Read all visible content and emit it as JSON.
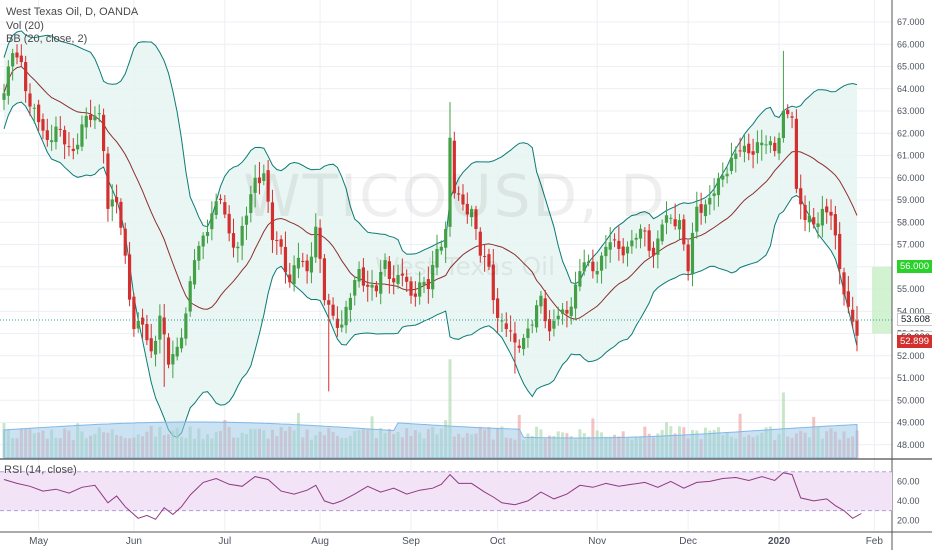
{
  "chart_data": [
    {
      "type": "candlestick",
      "title": "West Texas Oil, D, OANDA",
      "watermark": {
        "symbol": "WTICOUSD, D",
        "description": "West Texas Oil"
      },
      "legend": [
        "Vol (20)",
        "BB (20, close, 2)"
      ],
      "y_ticks": [
        48.0,
        49.0,
        50.0,
        51.0,
        52.0,
        53.0,
        54.0,
        55.0,
        56.0,
        57.0,
        58.0,
        59.0,
        60.0,
        61.0,
        62.0,
        63.0,
        64.0,
        65.0,
        66.0,
        67.0
      ],
      "ylim": [
        47.5,
        67.5
      ],
      "x_ticks": [
        {
          "label": "May",
          "index": 8
        },
        {
          "label": "Jun",
          "index": 30
        },
        {
          "label": "Jul",
          "index": 51
        },
        {
          "label": "Aug",
          "index": 73
        },
        {
          "label": "Sep",
          "index": 94
        },
        {
          "label": "Oct",
          "index": 114
        },
        {
          "label": "Nov",
          "index": 137
        },
        {
          "label": "Dec",
          "index": 158
        },
        {
          "label": "2020",
          "index": 179
        },
        {
          "label": "Feb",
          "index": 201
        }
      ],
      "price_labels": [
        {
          "value": "56.000",
          "color": "#26c126"
        },
        {
          "value": "53.608",
          "color": "#ffffff"
        },
        {
          "value": "52.900",
          "color": "#131722"
        },
        {
          "value": "52.899",
          "color": "#d32f2f"
        }
      ],
      "anchors": [
        {
          "i": 0,
          "close": 63.8
        },
        {
          "i": 2,
          "close": 65.6
        },
        {
          "i": 4,
          "close": 65.2
        },
        {
          "i": 6,
          "close": 63.2
        },
        {
          "i": 8,
          "close": 62.5
        },
        {
          "i": 10,
          "close": 61.7
        },
        {
          "i": 12,
          "close": 62.3
        },
        {
          "i": 14,
          "close": 61.5
        },
        {
          "i": 16,
          "close": 61.2
        },
        {
          "i": 18,
          "close": 62.4
        },
        {
          "i": 20,
          "close": 62.6
        },
        {
          "i": 22,
          "close": 62.9
        },
        {
          "i": 23,
          "close": 61.2
        },
        {
          "i": 24,
          "close": 58.6
        },
        {
          "i": 26,
          "close": 58.9
        },
        {
          "i": 28,
          "close": 56.5
        },
        {
          "i": 30,
          "close": 53.2
        },
        {
          "i": 32,
          "close": 53.4
        },
        {
          "i": 33,
          "close": 52.7
        },
        {
          "i": 34,
          "close": 52.2
        },
        {
          "i": 36,
          "close": 53.8
        },
        {
          "i": 38,
          "close": 51.6
        },
        {
          "i": 40,
          "close": 52.4
        },
        {
          "i": 42,
          "close": 53.9
        },
        {
          "i": 44,
          "close": 56.3
        },
        {
          "i": 46,
          "close": 57.4
        },
        {
          "i": 48,
          "close": 58.4
        },
        {
          "i": 50,
          "close": 59.0
        },
        {
          "i": 52,
          "close": 57.5
        },
        {
          "i": 54,
          "close": 56.9
        },
        {
          "i": 56,
          "close": 58.3
        },
        {
          "i": 58,
          "close": 60.0
        },
        {
          "i": 60,
          "close": 60.2
        },
        {
          "i": 62,
          "close": 57.2
        },
        {
          "i": 64,
          "close": 56.9
        },
        {
          "i": 66,
          "close": 55.3
        },
        {
          "i": 68,
          "close": 56.4
        },
        {
          "i": 70,
          "close": 55.8
        },
        {
          "i": 72,
          "close": 57.8
        },
        {
          "i": 74,
          "close": 54.5
        },
        {
          "i": 76,
          "close": 53.8
        },
        {
          "i": 78,
          "close": 53.4
        },
        {
          "i": 80,
          "close": 54.6
        },
        {
          "i": 82,
          "close": 55.9
        },
        {
          "i": 84,
          "close": 55.1
        },
        {
          "i": 86,
          "close": 54.9
        },
        {
          "i": 88,
          "close": 56.3
        },
        {
          "i": 90,
          "close": 55.3
        },
        {
          "i": 92,
          "close": 55.6
        },
        {
          "i": 94,
          "close": 54.7
        },
        {
          "i": 96,
          "close": 55.3
        },
        {
          "i": 98,
          "close": 55.0
        },
        {
          "i": 100,
          "close": 56.8
        },
        {
          "i": 102,
          "close": 57.7
        },
        {
          "i": 103,
          "close": 61.8
        },
        {
          "i": 104,
          "close": 59.3
        },
        {
          "i": 106,
          "close": 58.8
        },
        {
          "i": 108,
          "close": 58.6
        },
        {
          "i": 110,
          "close": 56.5
        },
        {
          "i": 112,
          "close": 56.0
        },
        {
          "i": 114,
          "close": 53.7
        },
        {
          "i": 116,
          "close": 53.2
        },
        {
          "i": 118,
          "close": 52.6
        },
        {
          "i": 120,
          "close": 52.8
        },
        {
          "i": 122,
          "close": 53.4
        },
        {
          "i": 124,
          "close": 54.7
        },
        {
          "i": 126,
          "close": 53.1
        },
        {
          "i": 128,
          "close": 53.8
        },
        {
          "i": 130,
          "close": 53.9
        },
        {
          "i": 132,
          "close": 55.2
        },
        {
          "i": 134,
          "close": 56.2
        },
        {
          "i": 136,
          "close": 55.8
        },
        {
          "i": 138,
          "close": 56.5
        },
        {
          "i": 140,
          "close": 57.1
        },
        {
          "i": 142,
          "close": 56.8
        },
        {
          "i": 144,
          "close": 56.9
        },
        {
          "i": 146,
          "close": 57.3
        },
        {
          "i": 148,
          "close": 57.6
        },
        {
          "i": 150,
          "close": 56.5
        },
        {
          "i": 152,
          "close": 57.9
        },
        {
          "i": 154,
          "close": 58.2
        },
        {
          "i": 156,
          "close": 58.1
        },
        {
          "i": 158,
          "close": 55.8
        },
        {
          "i": 160,
          "close": 58.7
        },
        {
          "i": 162,
          "close": 58.8
        },
        {
          "i": 164,
          "close": 59.3
        },
        {
          "i": 166,
          "close": 60.1
        },
        {
          "i": 168,
          "close": 60.9
        },
        {
          "i": 170,
          "close": 61.2
        },
        {
          "i": 172,
          "close": 61.1
        },
        {
          "i": 174,
          "close": 61.6
        },
        {
          "i": 176,
          "close": 61.5
        },
        {
          "i": 178,
          "close": 61.2
        },
        {
          "i": 180,
          "close": 63.0
        },
        {
          "i": 182,
          "close": 62.7
        },
        {
          "i": 183,
          "close": 59.5
        },
        {
          "i": 185,
          "close": 58.1
        },
        {
          "i": 187,
          "close": 57.9
        },
        {
          "i": 189,
          "close": 58.6
        },
        {
          "i": 191,
          "close": 58.3
        },
        {
          "i": 193,
          "close": 55.9
        },
        {
          "i": 195,
          "close": 54.2
        },
        {
          "i": 197,
          "close": 52.9
        }
      ],
      "rsi": {
        "label": "RSI (14, close)",
        "y_ticks": [
          20.0,
          40.0,
          60.0
        ],
        "ylim": [
          10,
          80
        ],
        "bands": [
          30,
          70
        ],
        "anchors": [
          {
            "i": 0,
            "v": 62
          },
          {
            "i": 3,
            "v": 58
          },
          {
            "i": 6,
            "v": 55
          },
          {
            "i": 9,
            "v": 50
          },
          {
            "i": 12,
            "v": 52
          },
          {
            "i": 15,
            "v": 48
          },
          {
            "i": 18,
            "v": 54
          },
          {
            "i": 21,
            "v": 56
          },
          {
            "i": 24,
            "v": 38
          },
          {
            "i": 26,
            "v": 45
          },
          {
            "i": 28,
            "v": 34
          },
          {
            "i": 31,
            "v": 22
          },
          {
            "i": 33,
            "v": 25
          },
          {
            "i": 35,
            "v": 21
          },
          {
            "i": 37,
            "v": 33
          },
          {
            "i": 39,
            "v": 26
          },
          {
            "i": 41,
            "v": 34
          },
          {
            "i": 43,
            "v": 46
          },
          {
            "i": 46,
            "v": 59
          },
          {
            "i": 49,
            "v": 63
          },
          {
            "i": 52,
            "v": 57
          },
          {
            "i": 55,
            "v": 55
          },
          {
            "i": 58,
            "v": 65
          },
          {
            "i": 61,
            "v": 62
          },
          {
            "i": 64,
            "v": 50
          },
          {
            "i": 67,
            "v": 47
          },
          {
            "i": 70,
            "v": 51
          },
          {
            "i": 72,
            "v": 56
          },
          {
            "i": 74,
            "v": 40
          },
          {
            "i": 76,
            "v": 37
          },
          {
            "i": 78,
            "v": 40
          },
          {
            "i": 81,
            "v": 47
          },
          {
            "i": 84,
            "v": 55
          },
          {
            "i": 87,
            "v": 49
          },
          {
            "i": 90,
            "v": 53
          },
          {
            "i": 93,
            "v": 47
          },
          {
            "i": 96,
            "v": 51
          },
          {
            "i": 99,
            "v": 53
          },
          {
            "i": 101,
            "v": 57
          },
          {
            "i": 103,
            "v": 67
          },
          {
            "i": 105,
            "v": 58
          },
          {
            "i": 108,
            "v": 58
          },
          {
            "i": 111,
            "v": 49
          },
          {
            "i": 113,
            "v": 44
          },
          {
            "i": 115,
            "v": 38
          },
          {
            "i": 118,
            "v": 36
          },
          {
            "i": 121,
            "v": 40
          },
          {
            "i": 124,
            "v": 49
          },
          {
            "i": 127,
            "v": 42
          },
          {
            "i": 130,
            "v": 47
          },
          {
            "i": 133,
            "v": 56
          },
          {
            "i": 136,
            "v": 54
          },
          {
            "i": 139,
            "v": 58
          },
          {
            "i": 142,
            "v": 55
          },
          {
            "i": 145,
            "v": 57
          },
          {
            "i": 148,
            "v": 59
          },
          {
            "i": 151,
            "v": 54
          },
          {
            "i": 154,
            "v": 60
          },
          {
            "i": 157,
            "v": 53
          },
          {
            "i": 160,
            "v": 59
          },
          {
            "i": 163,
            "v": 60
          },
          {
            "i": 166,
            "v": 63
          },
          {
            "i": 169,
            "v": 64
          },
          {
            "i": 172,
            "v": 61
          },
          {
            "i": 175,
            "v": 65
          },
          {
            "i": 178,
            "v": 61
          },
          {
            "i": 180,
            "v": 69
          },
          {
            "i": 182,
            "v": 67
          },
          {
            "i": 184,
            "v": 43
          },
          {
            "i": 187,
            "v": 40
          },
          {
            "i": 190,
            "v": 42
          },
          {
            "i": 192,
            "v": 35
          },
          {
            "i": 194,
            "v": 30
          },
          {
            "i": 196,
            "v": 22
          },
          {
            "i": 198,
            "v": 27
          }
        ]
      },
      "colors": {
        "up": "#43a047",
        "down": "#d32f2f",
        "bb_band": "#0b7a75",
        "bb_basis": "#8b2f2f",
        "bb_fill": "#e6f4f1",
        "volume": "#9fcbe6",
        "volume_ma": "#7fb8e8",
        "rsi_line": "#8e3a80",
        "rsi_fill": "#f3e3f7",
        "grid": "#eceff4",
        "axis_text": "#4c525e"
      }
    }
  ]
}
